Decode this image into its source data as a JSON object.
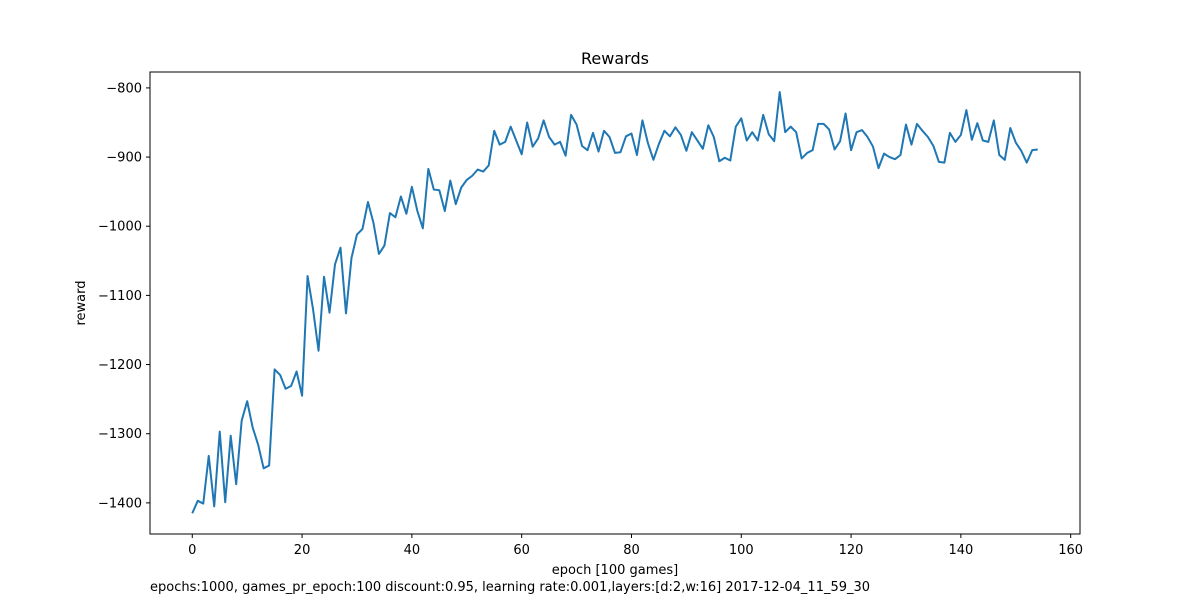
{
  "chart_data": {
    "type": "line",
    "title": "Rewards",
    "xlabel": "epoch [100 games]",
    "ylabel": "reward",
    "xlim": [
      -7.7,
      161.7
    ],
    "ylim": [
      -1445,
      -777
    ],
    "xticks": [
      0,
      20,
      40,
      60,
      80,
      100,
      120,
      140,
      160
    ],
    "yticks": [
      -1400,
      -1300,
      -1200,
      -1100,
      -1000,
      -900,
      -800
    ],
    "grid": false,
    "legend": "none",
    "series": [
      {
        "color": "#1f77b4",
        "x_start": 0,
        "x_step": 1,
        "values": [
          -1415,
          -1397,
          -1401,
          -1332,
          -1405,
          -1297,
          -1399,
          -1303,
          -1373,
          -1281,
          -1253,
          -1291,
          -1316,
          -1350,
          -1346,
          -1207,
          -1215,
          -1235,
          -1231,
          -1210,
          -1245,
          -1072,
          -1120,
          -1180,
          -1073,
          -1125,
          -1055,
          -1031,
          -1126,
          -1046,
          -1012,
          -1004,
          -965,
          -995,
          -1040,
          -1028,
          -981,
          -987,
          -957,
          -982,
          -943,
          -978,
          -1003,
          -917,
          -947,
          -948,
          -978,
          -934,
          -968,
          -944,
          -933,
          -927,
          -918,
          -921,
          -912,
          -862,
          -882,
          -878,
          -856,
          -876,
          -896,
          -850,
          -885,
          -873,
          -847,
          -871,
          -882,
          -878,
          -898,
          -839,
          -853,
          -884,
          -890,
          -865,
          -892,
          -862,
          -871,
          -894,
          -893,
          -870,
          -866,
          -897,
          -847,
          -880,
          -904,
          -881,
          -862,
          -870,
          -857,
          -868,
          -891,
          -864,
          -876,
          -888,
          -854,
          -871,
          -906,
          -901,
          -905,
          -856,
          -844,
          -876,
          -864,
          -876,
          -839,
          -867,
          -877,
          -806,
          -864,
          -856,
          -864,
          -902,
          -894,
          -890,
          -852,
          -852,
          -860,
          -889,
          -877,
          -837,
          -890,
          -864,
          -861,
          -871,
          -885,
          -916,
          -895,
          -900,
          -903,
          -897,
          -853,
          -882,
          -852,
          -862,
          -871,
          -884,
          -907,
          -908,
          -865,
          -878,
          -868,
          -832,
          -875,
          -851,
          -876,
          -878,
          -847,
          -897,
          -904,
          -858,
          -879,
          -891,
          -908,
          -890,
          -889
        ]
      }
    ]
  },
  "footnote": "epochs:1000, games_pr_epoch:100 discount:0.95, learning rate:0.001,layers:[d:2,w:16] 2017-12-04_11_59_30"
}
